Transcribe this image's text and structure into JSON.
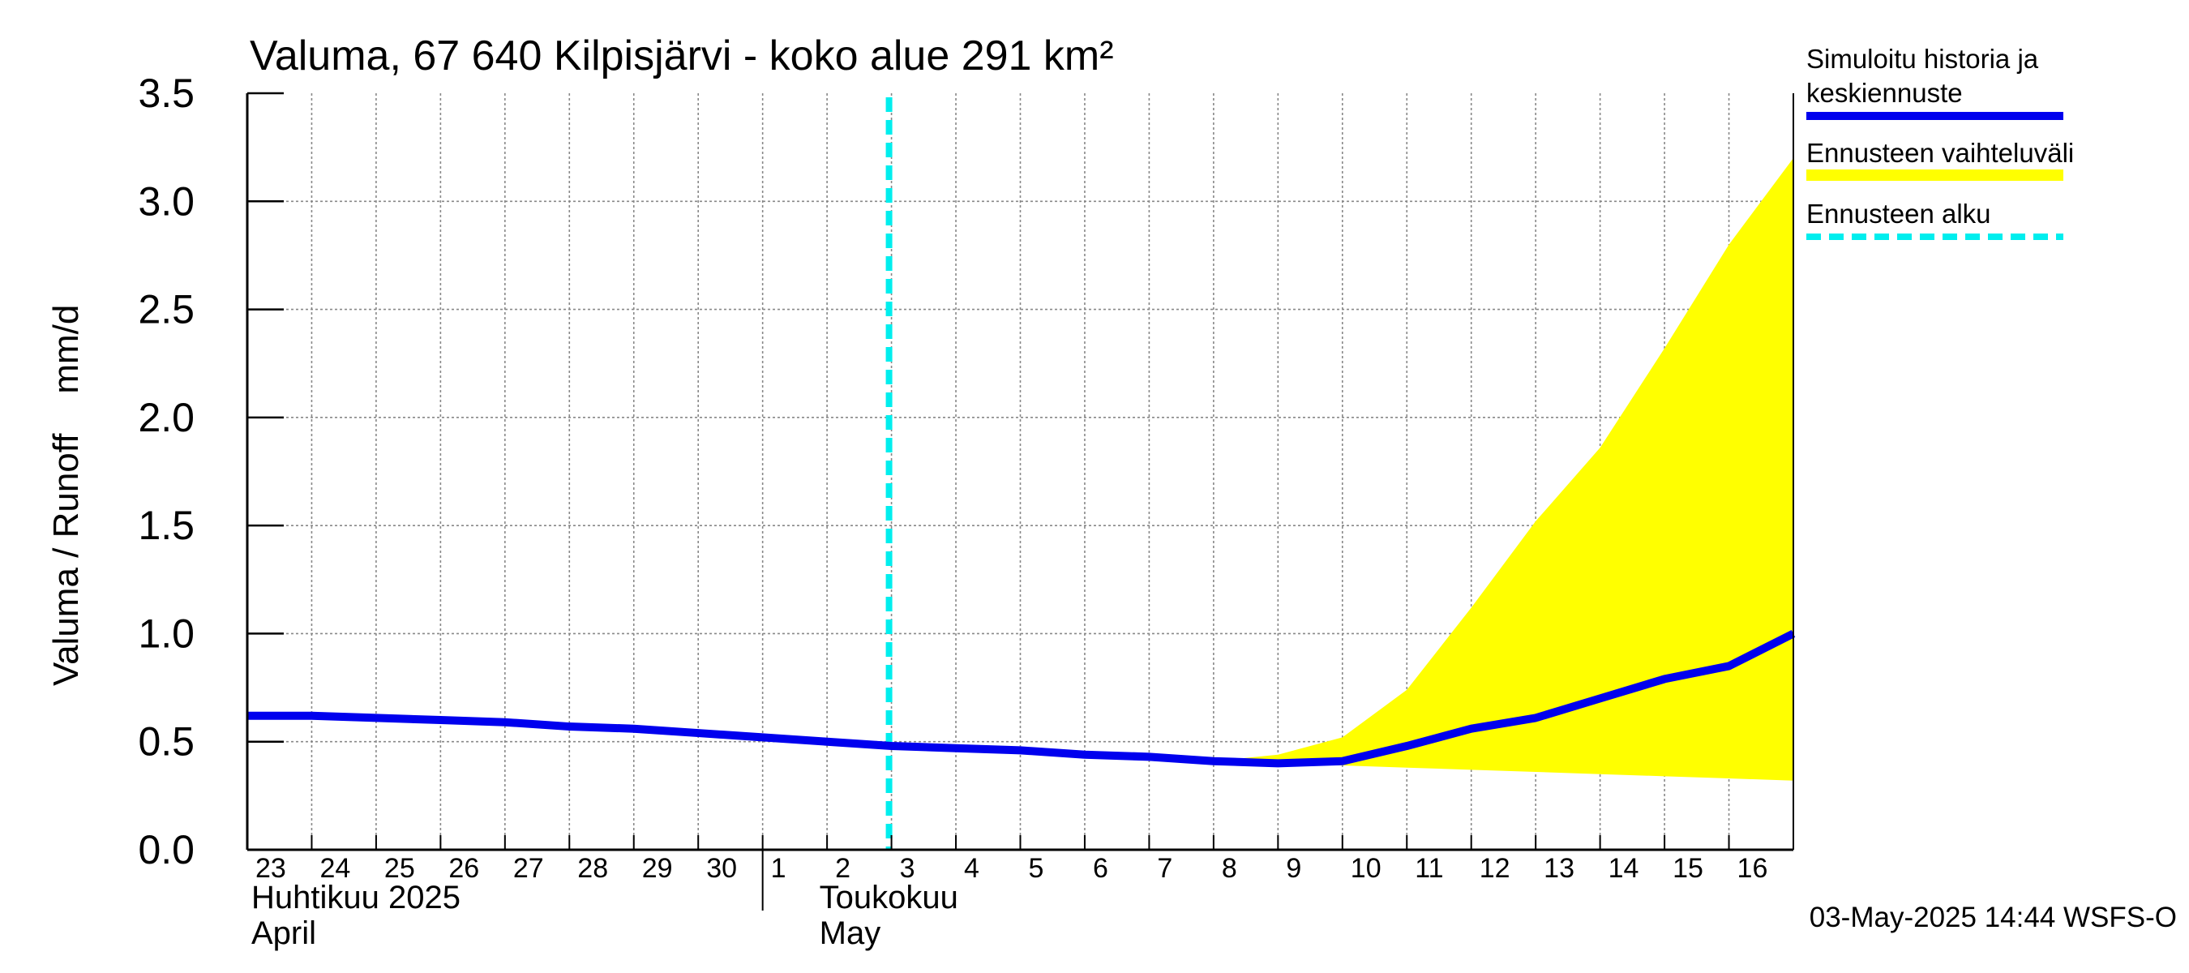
{
  "chart_data": {
    "type": "line",
    "title": "Valuma, 67 640 Kilpisjärvi - koko alue 291 km²",
    "ylabel": "Valuma / Runoff    mm/d",
    "ylim": [
      0,
      3.5
    ],
    "yticks": [
      "0.0",
      "0.5",
      "1.0",
      "1.5",
      "2.0",
      "2.5",
      "3.0",
      "3.5"
    ],
    "xlim": [
      "2025-04-23",
      "2025-05-17"
    ],
    "day_labels": [
      "23",
      "24",
      "25",
      "26",
      "27",
      "28",
      "29",
      "30",
      "1",
      "2",
      "3",
      "4",
      "5",
      "6",
      "7",
      "8",
      "9",
      "10",
      "11",
      "12",
      "13",
      "14",
      "15",
      "16"
    ],
    "month_labels": [
      {
        "fi": "Huhtikuu  2025",
        "en": "April"
      },
      {
        "fi": "Toukokuu",
        "en": "May"
      }
    ],
    "forecast_start": "2025-05-03",
    "series": [
      {
        "name": "Simuloitu historia ja keskiennuste",
        "color": "#0000ee",
        "x": [
          "2025-04-23",
          "2025-04-24",
          "2025-04-25",
          "2025-04-26",
          "2025-04-27",
          "2025-04-28",
          "2025-04-29",
          "2025-04-30",
          "2025-05-01",
          "2025-05-02",
          "2025-05-03",
          "2025-05-04",
          "2025-05-05",
          "2025-05-06",
          "2025-05-07",
          "2025-05-08",
          "2025-05-09",
          "2025-05-10",
          "2025-05-11",
          "2025-05-12",
          "2025-05-13",
          "2025-05-14",
          "2025-05-15",
          "2025-05-16",
          "2025-05-17"
        ],
        "values": [
          0.62,
          0.62,
          0.61,
          0.6,
          0.59,
          0.57,
          0.56,
          0.54,
          0.52,
          0.5,
          0.48,
          0.47,
          0.46,
          0.44,
          0.43,
          0.41,
          0.4,
          0.41,
          0.48,
          0.56,
          0.61,
          0.7,
          0.79,
          0.85,
          1.0
        ]
      },
      {
        "name": "Ennusteen vaihteluväli",
        "color": "#ffff00",
        "x": [
          "2025-05-08",
          "2025-05-09",
          "2025-05-10",
          "2025-05-11",
          "2025-05-12",
          "2025-05-13",
          "2025-05-14",
          "2025-05-15",
          "2025-05-16",
          "2025-05-17"
        ],
        "lower": [
          0.41,
          0.4,
          0.39,
          0.38,
          0.37,
          0.36,
          0.35,
          0.34,
          0.33,
          0.32
        ],
        "upper": [
          0.41,
          0.44,
          0.52,
          0.74,
          1.12,
          1.52,
          1.86,
          2.32,
          2.8,
          3.2
        ]
      },
      {
        "name": "Ennusteen alku",
        "color": "#00eeee",
        "style": "dashed"
      }
    ],
    "footer": "03-May-2025 14:44 WSFS-O",
    "grid": true,
    "legend_position": "right"
  }
}
